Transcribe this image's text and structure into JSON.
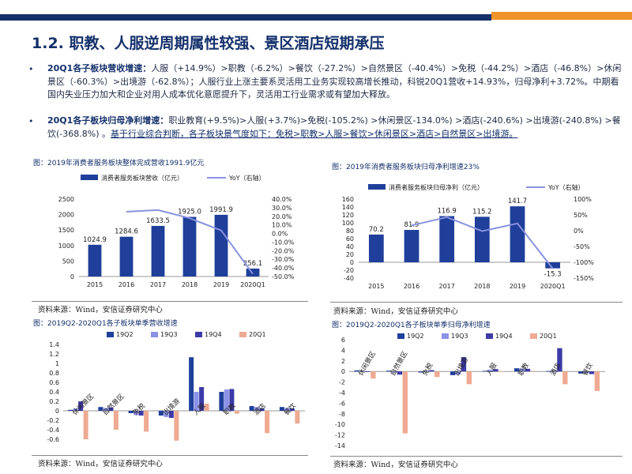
{
  "title": "1.2. 职教、人服逆周期属性较强、景区酒店短期承压",
  "bullets": [
    {
      "lead": "20Q1各子板块营收增速：",
      "text": "人服（+14.9%）>职教（-6.2%）>餐饮（-27.2%）>自然景区（-40.4%）>免税（-44.2%）>酒店（-46.8%）>休闲景区（-60.3%）>出境游（-62.8%）；人服行业上涨主要系灵活用工业务实现较高增长推动，科锐20Q1营收+14.93%，归母净利+3.72%。中期看国内失业压力加大和企业对用人成本优化意愿提升下，灵活用工行业需求或有望加大释放。"
    },
    {
      "lead": "20Q1各子板块归母净利增速：",
      "text": "职业教育(+9.5%)>人服(+3.7%)>免税(-105.2%) >休闲景区-134.0%) >酒店(-240.6%) >出境游(-240.8%) >餐饮(-368.8%) 。",
      "underline": "基于行业综合判断，各子板块景气度如下：免税>职教>人服>餐饮>休闲景区>酒店>自然景区>出境游。"
    }
  ],
  "sources": {
    "tl": "资料来源：Wind，安信证券研究中心",
    "tr": "资料来源：Wind，安信证券研究中心",
    "bl": "资料来源：Wind，安信证券研究中心",
    "br": "资料来源：Wind，安信证券研究中心"
  },
  "colors": {
    "navy": "#14306b",
    "bar": "#1f3f9a",
    "line": "#8892e0",
    "accent": "#f0932b",
    "q19q2": "#1f3f9a",
    "q19q3": "#8b91e8",
    "q19q4": "#3d3aa8",
    "q20q1": "#eeaa92"
  },
  "chart_data": [
    {
      "id": "revenue",
      "type": "bar",
      "title": "图：2019年消费者服务板块整体完成营收1991.9亿元",
      "categories": [
        "2015",
        "2016",
        "2017",
        "2018",
        "2019",
        "2020Q1"
      ],
      "series": [
        {
          "name": "消费者服务板块营收（亿元）",
          "values": [
            1024.9,
            1284.6,
            1633.5,
            1925.0,
            1991.9,
            256.1
          ],
          "labels": [
            "1024.9",
            "1284.6",
            "1633.5",
            "1925.0",
            "1991.9",
            "256.1"
          ]
        },
        {
          "name": "YoY（右轴）",
          "values": [
            null,
            25.3,
            27.2,
            17.8,
            3.5,
            -47.0
          ]
        }
      ],
      "ylim": [
        0,
        2500
      ],
      "yticks": [
        "0",
        "500",
        "1000",
        "1500",
        "2000",
        "2500"
      ],
      "y2lim": [
        -50,
        40
      ],
      "y2ticks": [
        "-50.0%",
        "-40.0%",
        "-30.0%",
        "-20.0%",
        "-10.0%",
        "0.0%",
        "10.0%",
        "20.0%",
        "30.0%",
        "40.0%"
      ]
    },
    {
      "id": "profit",
      "type": "bar",
      "title": "图：2019年消费者服务板块归母净利增速23%",
      "categories": [
        "2015",
        "2016",
        "2017",
        "2018",
        "2019",
        "2020Q1"
      ],
      "series": [
        {
          "name": "消费者服务板块归母净利（亿元）",
          "values": [
            70.2,
            81.9,
            116.9,
            115.2,
            141.7,
            -15.3
          ],
          "labels": [
            "70.2",
            "81.9",
            "116.9",
            "115.2",
            "141.7",
            "-15.3"
          ]
        },
        {
          "name": "YoY（右轴）",
          "values": [
            null,
            16.7,
            42.7,
            -1.5,
            23.0,
            -120.0
          ]
        }
      ],
      "ylim": [
        -40,
        160
      ],
      "yticks": [
        "-40",
        "-20",
        "0",
        "20",
        "40",
        "60",
        "80",
        "100",
        "120",
        "140",
        "160"
      ],
      "y2lim": [
        -150,
        100
      ],
      "y2ticks": [
        "-150%",
        "-100%",
        "-50%",
        "0%",
        "50%",
        "100%"
      ]
    },
    {
      "id": "rev_growth",
      "type": "bar",
      "title": "图：2019Q2-2020Q1各子板块单季营收增速",
      "categories": [
        "休闲景区",
        "自然景区",
        "免税",
        "出境游",
        "人服",
        "职教",
        "酒店",
        "餐饮"
      ],
      "series": [
        {
          "name": "19Q2",
          "values": [
            0.02,
            0.08,
            -0.05,
            -0.1,
            1.13,
            0.4,
            0.1,
            0.08
          ]
        },
        {
          "name": "19Q3",
          "values": [
            0.05,
            0.06,
            -0.09,
            -0.13,
            0.4,
            0.45,
            0.08,
            0.06
          ]
        },
        {
          "name": "19Q4",
          "values": [
            0.2,
            0.07,
            -0.1,
            -0.15,
            0.5,
            0.46,
            0.05,
            0.05
          ]
        },
        {
          "name": "20Q1",
          "values": [
            -0.6,
            -0.4,
            -0.44,
            -0.63,
            0.15,
            -0.06,
            -0.47,
            -0.27
          ]
        }
      ],
      "ylim": [
        -0.6,
        1.4
      ],
      "yticks": [
        "-0.6",
        "-0.4",
        "-0.2",
        "0",
        "0.2",
        "0.4",
        "0.6",
        "0.8",
        "1",
        "1.2",
        "1.4"
      ]
    },
    {
      "id": "profit_growth",
      "type": "bar",
      "title": "图：2019Q2-2020Q1各子板块单季归母净利增速",
      "categories": [
        "休闲景区",
        "自然景区",
        "免税",
        "出境游",
        "人服",
        "职教",
        "酒店",
        "餐饮"
      ],
      "series": [
        {
          "name": "19Q2",
          "values": [
            0.2,
            0.15,
            -0.2,
            -0.7,
            0.1,
            0.6,
            0.1,
            -0.4
          ]
        },
        {
          "name": "19Q3",
          "values": [
            0.1,
            -0.2,
            0.15,
            -0.6,
            0.35,
            0.55,
            0.2,
            -0.3
          ]
        },
        {
          "name": "19Q4",
          "values": [
            0.0,
            -0.6,
            0.25,
            2.7,
            0.45,
            0.5,
            4.4,
            -0.5
          ]
        },
        {
          "name": "20Q1",
          "values": [
            -1.34,
            -11.7,
            -1.05,
            -2.41,
            0.04,
            0.1,
            -2.41,
            -3.69
          ]
        }
      ],
      "ylim": [
        -14,
        6
      ],
      "yticks": [
        "-14",
        "-12",
        "-10",
        "-8",
        "-6",
        "-4",
        "-2",
        "0",
        "2",
        "4",
        "6"
      ]
    }
  ]
}
